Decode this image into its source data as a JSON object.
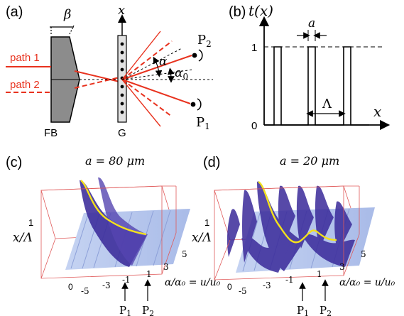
{
  "figure": {
    "panels": {
      "a": {
        "label": "(a)",
        "path1": "path 1",
        "path2": "path 2",
        "beta": "β",
        "axis_x": "x",
        "alpha": "α",
        "alpha0": "α",
        "alpha0_sub": "0",
        "P2": "P",
        "P2_sub": "2",
        "P1": "P",
        "P1_sub": "1",
        "FB": "FB",
        "G": "G"
      },
      "b": {
        "label": "(b)",
        "ylabel": "t(x)",
        "one": "1",
        "zero": "0",
        "a": "a",
        "Lambda": "Λ",
        "xlabel": "x"
      },
      "c": {
        "label": "(c)",
        "title": "a = 80 μm",
        "ylabel": "x/Λ",
        "y_top": "1",
        "y_bottom": "0",
        "ticks": [
          "-5",
          "-3",
          "-1",
          "1",
          "3",
          "5"
        ],
        "xlabel": "α/α₀ = u/u₀",
        "P1": "P",
        "P1_sub": "1",
        "P2": "P",
        "P2_sub": "2"
      },
      "d": {
        "label": "(d)",
        "title": "a = 20 μm",
        "ylabel": "x/Λ",
        "y_top": "1",
        "y_bottom": "0",
        "ticks": [
          "-5",
          "-3",
          "-1",
          "1",
          "3",
          "5"
        ],
        "xlabel": "α/α₀ = u/u₀",
        "P1": "P",
        "P1_sub": "1",
        "P2": "P",
        "P2_sub": "2"
      }
    },
    "colors": {
      "laser": "#e8321e",
      "surface_dark": "#3a2a9a",
      "surface_light": "#b8c8ee",
      "highlight": "#f4e21a",
      "box": "#e05a5a"
    }
  }
}
